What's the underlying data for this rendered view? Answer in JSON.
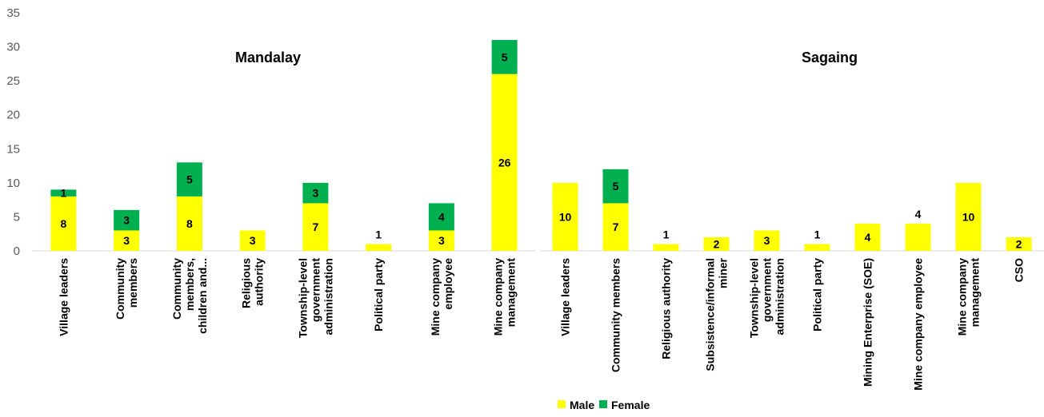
{
  "chart_data": {
    "type": "bar",
    "stacked": true,
    "ylim": [
      0,
      35
    ],
    "yticks": [
      0,
      5,
      10,
      15,
      20,
      25,
      30,
      35
    ],
    "grid": false,
    "legend_position": "bottom",
    "legend": [
      {
        "name": "Male",
        "color": "#ffff00"
      },
      {
        "name": "Female",
        "color": "#00b050"
      }
    ],
    "panels": [
      {
        "title": "Mandalay",
        "categories": [
          [
            "Village leaders"
          ],
          [
            "Community",
            "members"
          ],
          [
            "Community",
            "members,",
            "children and..."
          ],
          [
            "Religious",
            "authority"
          ],
          [
            "Township-level",
            "government",
            "administration"
          ],
          [
            "Political party"
          ],
          [
            "Mine company",
            "employee"
          ],
          [
            "Mine company",
            "management"
          ]
        ],
        "series": [
          {
            "name": "Male",
            "values": [
              8,
              3,
              8,
              3,
              7,
              1,
              3,
              26
            ]
          },
          {
            "name": "Female",
            "values": [
              1,
              3,
              5,
              0,
              3,
              0,
              4,
              5
            ]
          }
        ],
        "labels": {
          "Male": [
            "8",
            "3",
            "8",
            "3",
            "7",
            "",
            "3",
            "26"
          ],
          "Female": [
            "1",
            "3",
            "5",
            "",
            "3",
            "",
            "4",
            "5"
          ],
          "Top": [
            "",
            "",
            "",
            "",
            "",
            "1",
            "",
            ""
          ]
        }
      },
      {
        "title": "Sagaing",
        "categories": [
          [
            "Village leaders"
          ],
          [
            "Community members"
          ],
          [
            "Religious authority"
          ],
          [
            "Subsistence/informal",
            "miner"
          ],
          [
            "Township-level",
            "government",
            "administration"
          ],
          [
            "Political party"
          ],
          [
            "Mining Enterprise (SOE)"
          ],
          [
            "Mine company employee"
          ],
          [
            "Mine company",
            "management"
          ],
          [
            "CSO"
          ]
        ],
        "series": [
          {
            "name": "Male",
            "values": [
              10,
              7,
              1,
              2,
              3,
              1,
              4,
              4,
              10,
              2
            ]
          },
          {
            "name": "Female",
            "values": [
              0,
              5,
              0,
              0,
              0,
              0,
              0,
              0,
              0,
              0
            ]
          }
        ],
        "labels": {
          "Male": [
            "10",
            "7",
            "",
            "2",
            "3",
            "",
            "4",
            "",
            "10",
            "2"
          ],
          "Female": [
            "",
            "5",
            "",
            "",
            "",
            "",
            "",
            "",
            "",
            ""
          ],
          "Top": [
            "",
            "",
            "1",
            "",
            "",
            "1",
            "",
            "4",
            "",
            ""
          ]
        }
      }
    ]
  }
}
